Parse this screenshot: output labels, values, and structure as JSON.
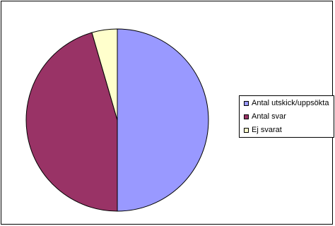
{
  "chart_data": {
    "type": "pie",
    "title": "",
    "slices": [
      {
        "label": "Antal utskick/uppsökta",
        "value": 50.0,
        "color": "#9999FF"
      },
      {
        "label": "Antal svar",
        "value": 45.5,
        "color": "#993366"
      },
      {
        "label": "Ej svarat",
        "value": 4.5,
        "color": "#FFFFCC"
      }
    ],
    "legend_position": "right"
  }
}
